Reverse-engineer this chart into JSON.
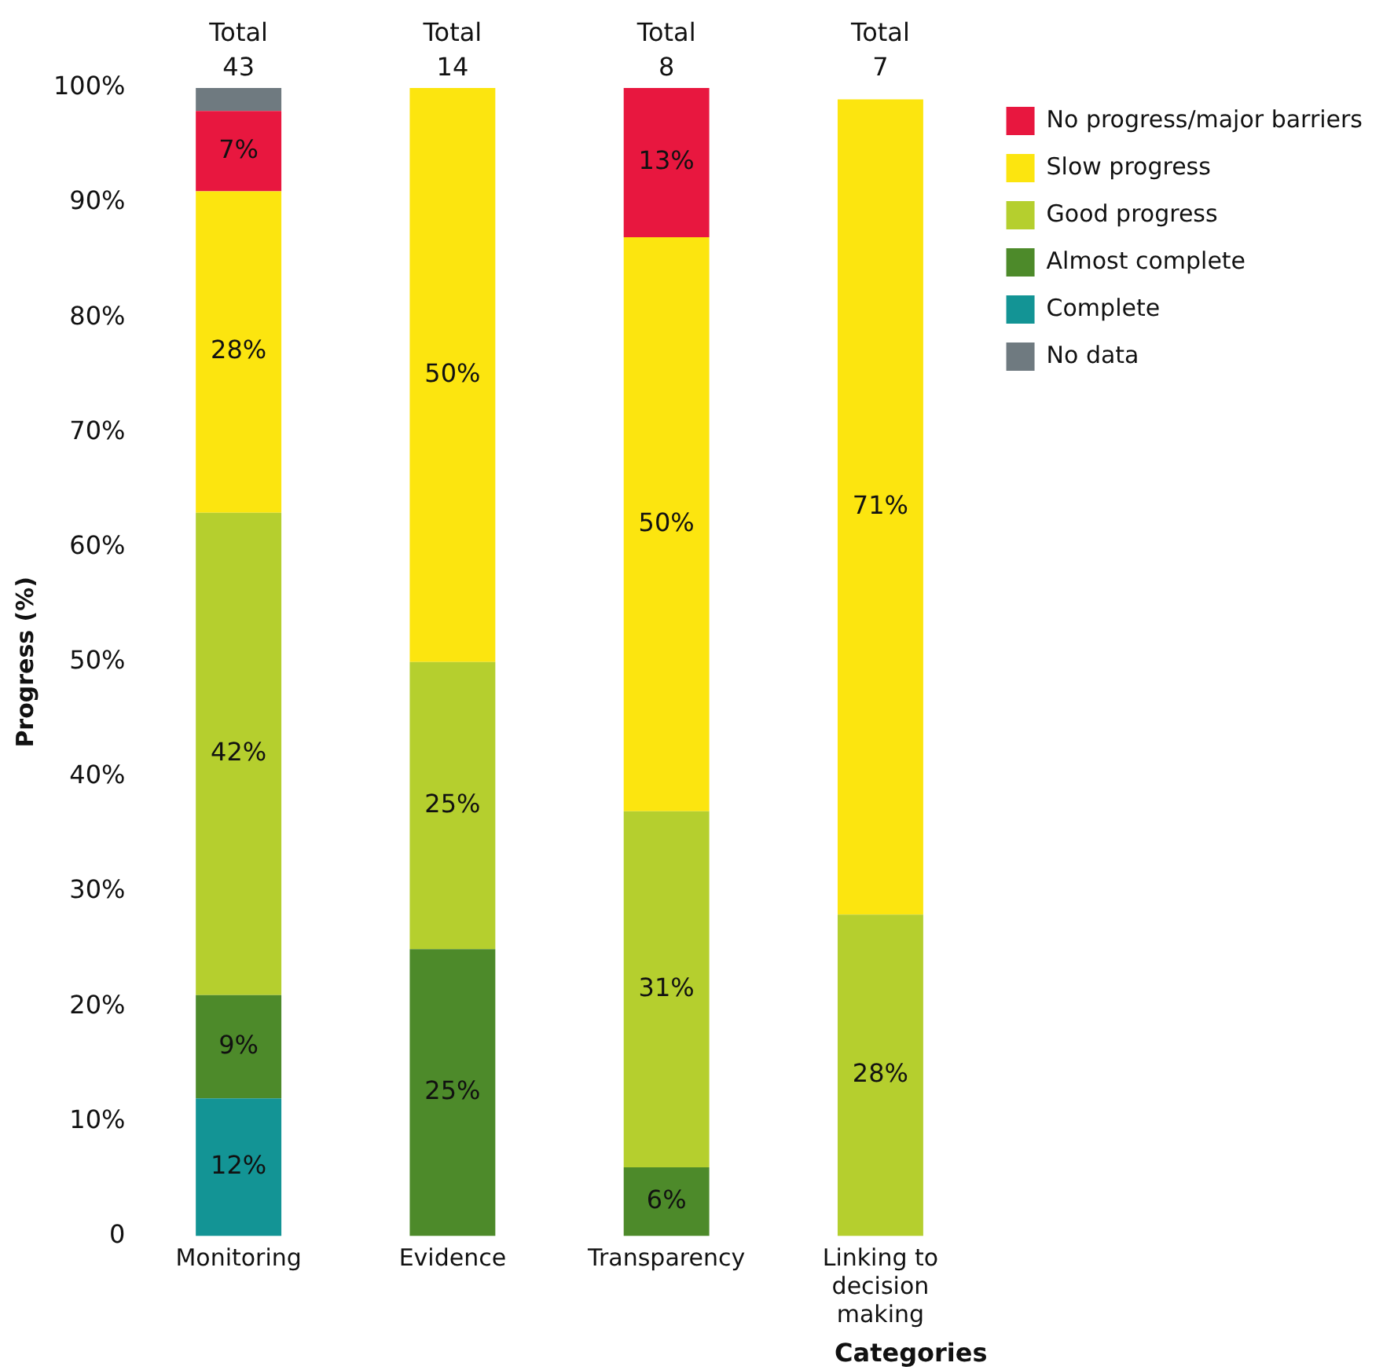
{
  "chart_data": {
    "type": "bar",
    "stacked": true,
    "ylabel": "Progress (%)",
    "xlabel": "Categories",
    "categories": [
      "Monitoring",
      "Evidence",
      "Transparency",
      "Linking to decision making"
    ],
    "series": [
      {
        "name": "Complete",
        "color": "#139495",
        "values": [
          12,
          0,
          0,
          0
        ],
        "value_labels": [
          "12%",
          null,
          null,
          null
        ]
      },
      {
        "name": "Almost complete",
        "color": "#4d8a2a",
        "values": [
          9,
          25,
          6,
          0
        ],
        "value_labels": [
          "9%",
          "25%",
          "6%",
          null
        ]
      },
      {
        "name": "Good progress",
        "color": "#b5cf2e",
        "values": [
          42,
          25,
          31,
          28
        ],
        "value_labels": [
          "42%",
          "25%",
          "31%",
          "28%"
        ]
      },
      {
        "name": "Slow progress",
        "color": "#fce50f",
        "values": [
          28,
          50,
          50,
          71
        ],
        "value_labels": [
          "28%",
          "50%",
          "50%",
          "71%"
        ]
      },
      {
        "name": "No progress/major barriers",
        "color": "#e8173f",
        "values": [
          7,
          0,
          13,
          0
        ],
        "value_labels": [
          "7%",
          null,
          "13%",
          null
        ]
      },
      {
        "name": "No data",
        "color": "#6f7a80",
        "values": [
          2,
          0,
          0,
          0
        ],
        "value_labels": [
          null,
          null,
          null,
          null
        ]
      }
    ],
    "totals": [
      "Total 43",
      "Total 14",
      "Total 8",
      "Total 7"
    ],
    "ylim": [
      0,
      100
    ],
    "yticks": [
      0,
      {
        "value": 10,
        "label": "10%"
      },
      {
        "value": 20,
        "label": "20%"
      },
      {
        "value": 30,
        "label": "30%"
      },
      {
        "value": 40,
        "label": "40%"
      },
      {
        "value": 50,
        "label": "50%"
      },
      {
        "value": 60,
        "label": "60%"
      },
      {
        "value": 70,
        "label": "70%"
      },
      {
        "value": 80,
        "label": "80%"
      },
      {
        "value": 90,
        "label": "90%"
      },
      {
        "value": 100,
        "label": "100%"
      }
    ],
    "grid": false,
    "legend": "top right"
  }
}
